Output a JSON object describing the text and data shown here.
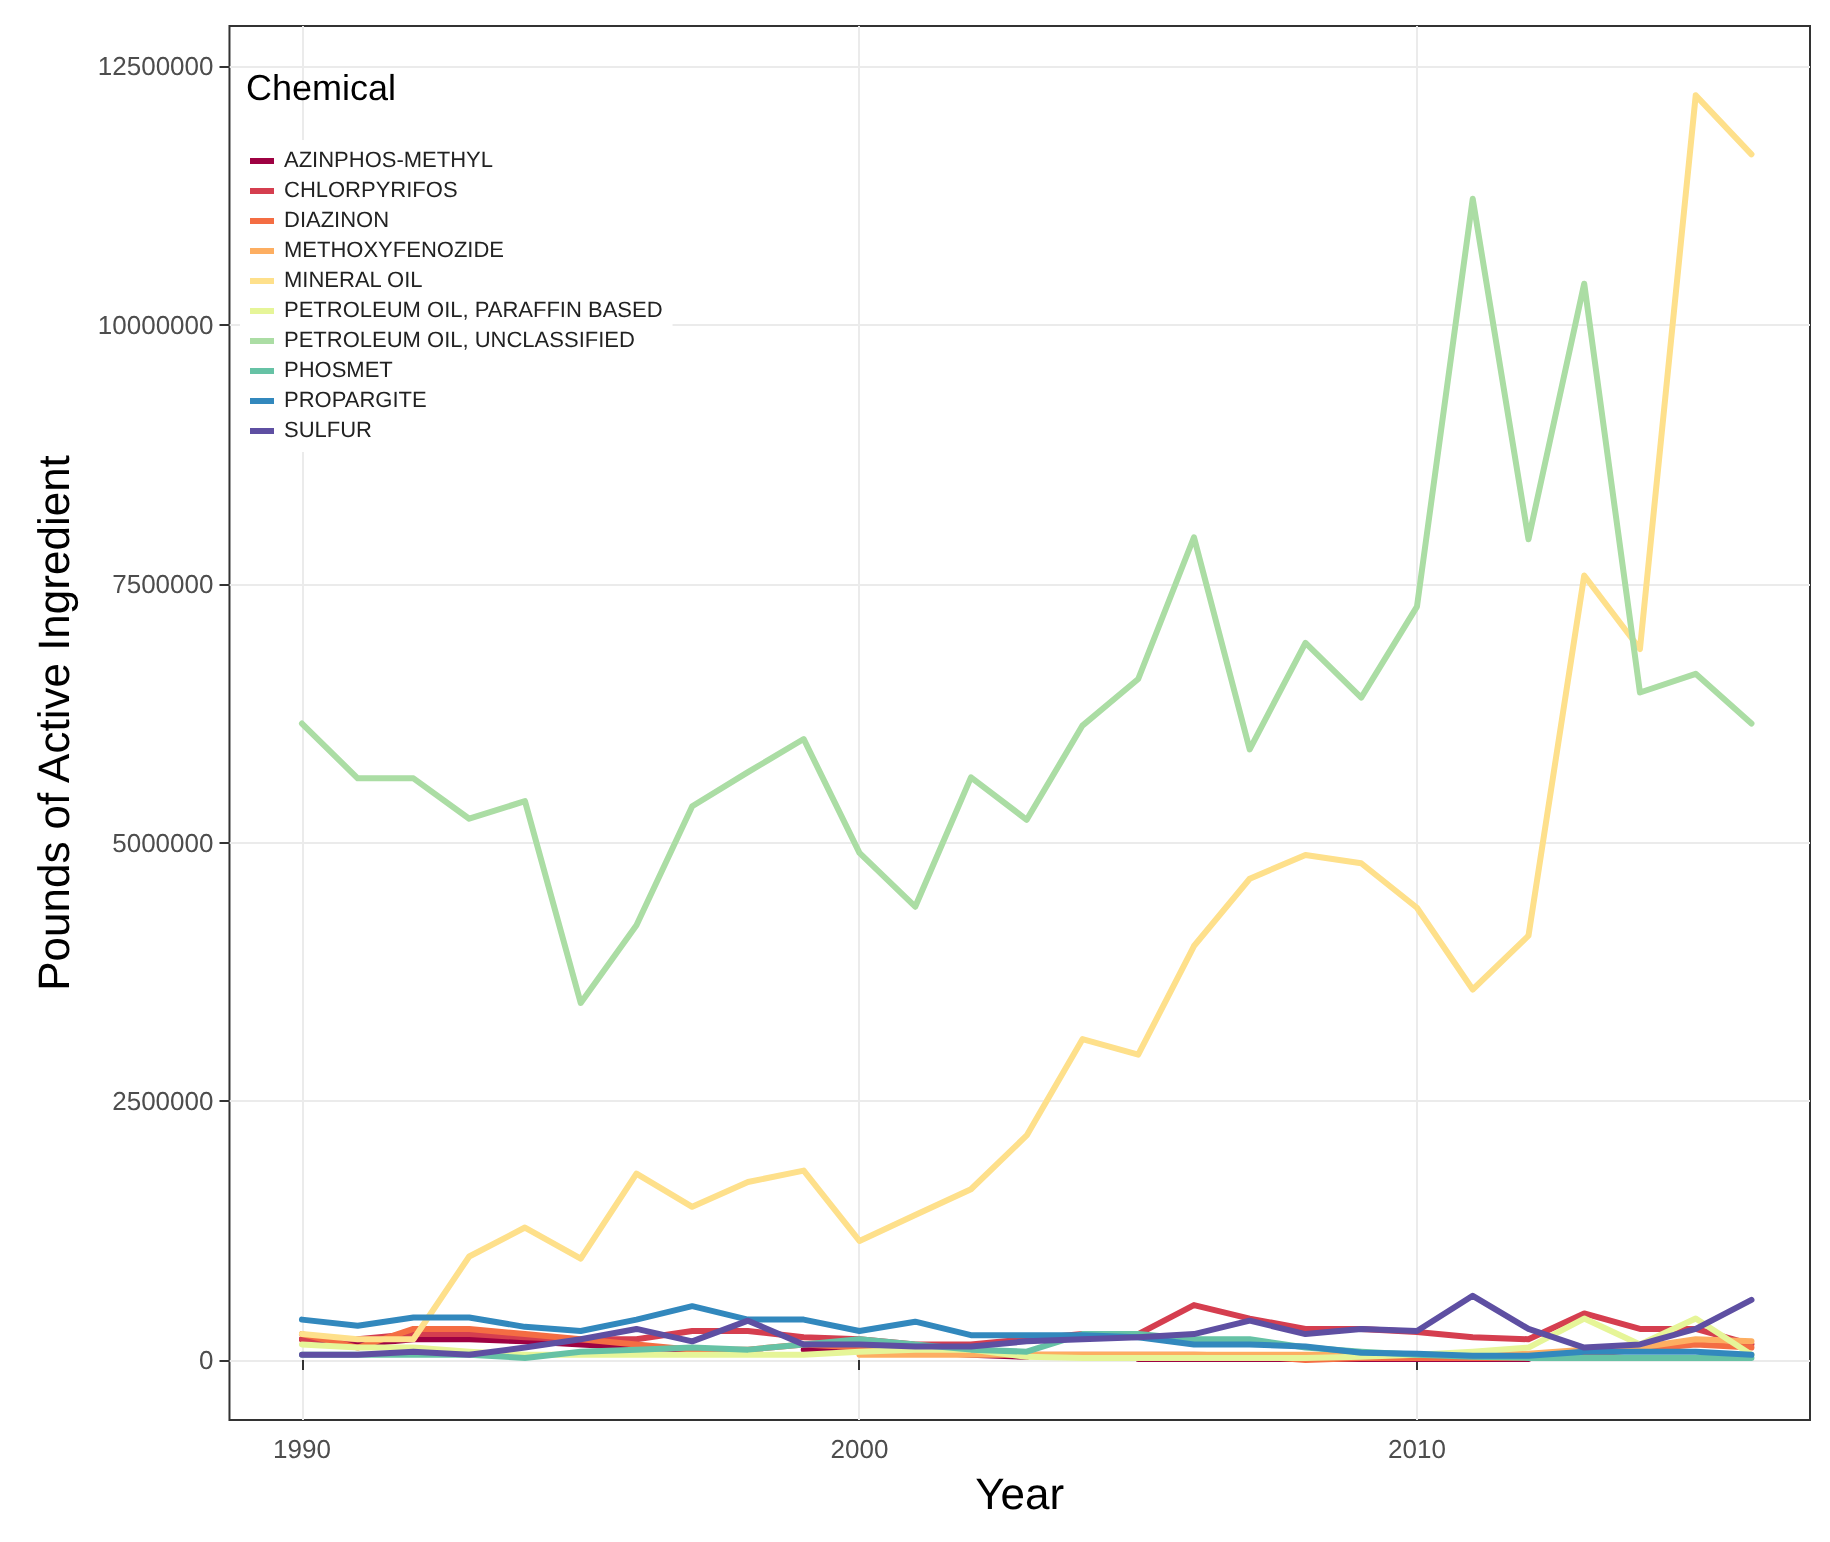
{
  "chart_data": {
    "type": "line",
    "xlabel": "Year",
    "ylabel": "Pounds of Active Ingredient",
    "legend_title": "Chemical",
    "legend": "top left",
    "grid": true,
    "line_style": "solid",
    "x": [
      1990,
      1991,
      1992,
      1993,
      1994,
      1995,
      1996,
      1997,
      1998,
      1999,
      2000,
      2001,
      2002,
      2003,
      2004,
      2005,
      2006,
      2007,
      2008,
      2009,
      2010,
      2011,
      2012,
      2013,
      2014,
      2015,
      2016
    ],
    "xlim": [
      1988.7,
      2017.05
    ],
    "xticks": [
      1990,
      2000,
      2010
    ],
    "ylim": [
      -580000,
      12890000
    ],
    "yticks": [
      0,
      2500000,
      5000000,
      7500000,
      10000000,
      12500000
    ],
    "series": [
      {
        "name": "AZINPHOS-METHYL",
        "color": "#9e0142",
        "values": [
          200000,
          150000,
          200000,
          200000,
          180000,
          150000,
          120000,
          100000,
          null,
          100000,
          100000,
          80000,
          50000,
          30000,
          null,
          10000,
          10000,
          10000,
          10000,
          10000,
          10000,
          10000,
          10000,
          null,
          null,
          null,
          null
        ]
      },
      {
        "name": "CHLORPYRIFOS",
        "color": "#d53e4f",
        "values": [
          200000,
          200000,
          250000,
          250000,
          220000,
          200000,
          200000,
          280000,
          280000,
          220000,
          200000,
          150000,
          150000,
          200000,
          250000,
          250000,
          530000,
          400000,
          300000,
          300000,
          270000,
          220000,
          200000,
          450000,
          300000,
          300000,
          150000
        ]
      },
      {
        "name": "DIAZINON",
        "color": "#f46d43",
        "values": [
          250000,
          120000,
          300000,
          300000,
          250000,
          200000,
          150000,
          100000,
          100000,
          150000,
          120000,
          100000,
          100000,
          50000,
          50000,
          50000,
          50000,
          40000,
          0,
          20000,
          20000,
          20000,
          20000,
          50000,
          100000,
          150000,
          120000
        ]
      },
      {
        "name": "METHOXYFENOZIDE",
        "color": "#fdae61",
        "values": [
          null,
          null,
          null,
          null,
          null,
          null,
          null,
          null,
          null,
          null,
          50000,
          50000,
          50000,
          50000,
          50000,
          50000,
          50000,
          50000,
          50000,
          50000,
          50000,
          50000,
          60000,
          100000,
          120000,
          200000,
          180000
        ]
      },
      {
        "name": "MINERAL OIL",
        "color": "#fee08b",
        "values": [
          250000,
          200000,
          200000,
          1000000,
          1280000,
          980000,
          1800000,
          1480000,
          1720000,
          1830000,
          1150000,
          1400000,
          1650000,
          2170000,
          3100000,
          2950000,
          4000000,
          4650000,
          4880000,
          4800000,
          4370000,
          3580000,
          4100000,
          7580000,
          6870000,
          12220000,
          11650000
        ]
      },
      {
        "name": "PETROLEUM OIL, PARAFFIN BASED",
        "color": "#e6f598",
        "values": [
          150000,
          120000,
          120000,
          80000,
          50000,
          50000,
          50000,
          50000,
          50000,
          50000,
          80000,
          100000,
          100000,
          30000,
          20000,
          20000,
          20000,
          20000,
          20000,
          30000,
          50000,
          80000,
          120000,
          400000,
          150000,
          400000,
          50000
        ]
      },
      {
        "name": "PETROLEUM OIL, UNCLASSIFIED",
        "color": "#abdda4",
        "values": [
          6150000,
          5620000,
          5620000,
          5230000,
          5400000,
          3450000,
          4200000,
          5350000,
          5680000,
          6000000,
          4900000,
          4380000,
          5630000,
          5220000,
          6130000,
          6580000,
          7950000,
          5900000,
          6930000,
          6400000,
          7280000,
          11220000,
          7930000,
          10400000,
          6450000,
          6630000,
          6150000
        ]
      },
      {
        "name": "PHOSMET",
        "color": "#66c2a5",
        "values": [
          50000,
          50000,
          50000,
          50000,
          20000,
          80000,
          100000,
          120000,
          100000,
          150000,
          200000,
          150000,
          100000,
          80000,
          250000,
          250000,
          200000,
          200000,
          120000,
          80000,
          50000,
          30000,
          20000,
          20000,
          20000,
          20000,
          20000
        ]
      },
      {
        "name": "PROPARGITE",
        "color": "#3288bd",
        "values": [
          390000,
          330000,
          410000,
          410000,
          320000,
          280000,
          390000,
          520000,
          390000,
          390000,
          280000,
          370000,
          240000,
          240000,
          240000,
          220000,
          150000,
          150000,
          130000,
          70000,
          60000,
          40000,
          40000,
          80000,
          80000,
          80000,
          50000
        ]
      },
      {
        "name": "SULFUR",
        "color": "#5e4fa2",
        "values": [
          50000,
          50000,
          80000,
          50000,
          120000,
          200000,
          300000,
          180000,
          380000,
          150000,
          150000,
          130000,
          130000,
          180000,
          200000,
          220000,
          250000,
          380000,
          250000,
          300000,
          280000,
          620000,
          300000,
          120000,
          150000,
          300000,
          580000
        ]
      }
    ]
  }
}
